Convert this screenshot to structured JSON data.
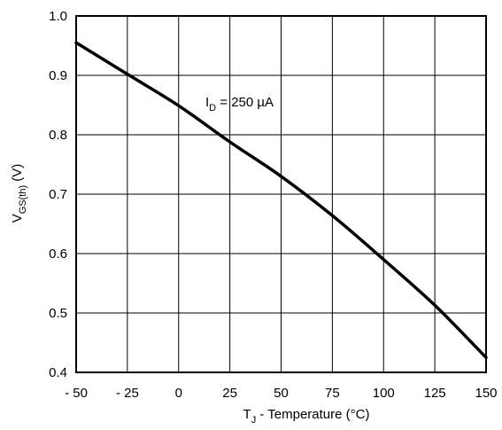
{
  "chart_data": {
    "type": "line",
    "title": "",
    "xlabel": {
      "main": "T",
      "sub": "J",
      "rest": " - Temperature (°C)"
    },
    "ylabel": {
      "main": "V",
      "sub": "GS(th)",
      "rest": "  (V)"
    },
    "xlim": [
      -50,
      150
    ],
    "ylim": [
      0.4,
      1.0
    ],
    "xticks": [
      -50,
      -25,
      0,
      25,
      50,
      75,
      100,
      125,
      150
    ],
    "xtick_labels": [
      "- 50",
      "- 25",
      "0",
      "25",
      "50",
      "75",
      "100",
      "125",
      "150"
    ],
    "yticks": [
      0.4,
      0.5,
      0.6,
      0.7,
      0.8,
      0.9,
      1.0
    ],
    "ytick_labels": [
      "0.4",
      "0.5",
      "0.6",
      "0.7",
      "0.8",
      "0.9",
      "1.0"
    ],
    "grid": true,
    "annotation": {
      "main": "I",
      "sub": "D",
      "rest": " = 250 µA"
    },
    "series": [
      {
        "x": [
          -50,
          -25,
          0,
          25,
          50,
          75,
          100,
          125,
          150
        ],
        "y": [
          0.955,
          0.902,
          0.849,
          0.788,
          0.73,
          0.664,
          0.59,
          0.513,
          0.425
        ]
      }
    ]
  }
}
